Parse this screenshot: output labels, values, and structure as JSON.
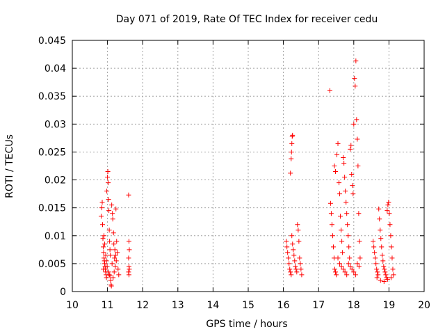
{
  "chart_data": {
    "type": "scatter",
    "title": "Day 071 of 2019, Rate Of TEC Index for receiver cedu",
    "xlabel": "GPS time / hours",
    "ylabel": "ROTI / TECUs",
    "xlim": [
      10,
      20
    ],
    "ylim": [
      0,
      0.045
    ],
    "x_ticks": [
      "10",
      "11",
      "12",
      "13",
      "14",
      "15",
      "16",
      "17",
      "18",
      "19",
      "20"
    ],
    "y_ticks": [
      "0",
      "0.005",
      "0.01",
      "0.015",
      "0.02",
      "0.025",
      "0.03",
      "0.035",
      "0.04",
      "0.045"
    ],
    "grid": true,
    "marker": "+",
    "marker_color": "#ff0000",
    "series": [
      {
        "name": "ROTI",
        "points": [
          [
            10.82,
            0.0135
          ],
          [
            10.84,
            0.015
          ],
          [
            10.85,
            0.016
          ],
          [
            10.86,
            0.012
          ],
          [
            10.87,
            0.0095
          ],
          [
            10.88,
            0.008
          ],
          [
            10.89,
            0.007
          ],
          [
            10.9,
            0.006
          ],
          [
            10.91,
            0.0055
          ],
          [
            10.92,
            0.005
          ],
          [
            10.93,
            0.0045
          ],
          [
            10.94,
            0.004
          ],
          [
            10.95,
            0.0035
          ],
          [
            10.96,
            0.003
          ],
          [
            10.97,
            0.0025
          ],
          [
            10.98,
            0.018
          ],
          [
            11.0,
            0.0205
          ],
          [
            11.01,
            0.0215
          ],
          [
            11.02,
            0.0195
          ],
          [
            11.03,
            0.0165
          ],
          [
            11.04,
            0.0145
          ],
          [
            11.05,
            0.011
          ],
          [
            11.06,
            0.009
          ],
          [
            11.07,
            0.0075
          ],
          [
            11.08,
            0.0065
          ],
          [
            11.09,
            0.002
          ],
          [
            11.1,
            0.0012
          ],
          [
            11.11,
            0.001
          ],
          [
            11.12,
            0.0155
          ],
          [
            11.14,
            0.014
          ],
          [
            11.15,
            0.013
          ],
          [
            11.17,
            0.0105
          ],
          [
            11.18,
            0.0085
          ],
          [
            11.2,
            0.006
          ],
          [
            11.22,
            0.0045
          ],
          [
            11.24,
            0.0148
          ],
          [
            11.26,
            0.009
          ],
          [
            11.28,
            0.007
          ],
          [
            11.3,
            0.004
          ],
          [
            11.32,
            0.003
          ],
          [
            10.88,
            0.004
          ],
          [
            10.9,
            0.01
          ],
          [
            10.92,
            0.0085
          ],
          [
            10.95,
            0.0065
          ],
          [
            10.97,
            0.0055
          ],
          [
            10.99,
            0.0045
          ],
          [
            11.03,
            0.0035
          ],
          [
            11.05,
            0.003
          ],
          [
            11.07,
            0.0028
          ],
          [
            11.13,
            0.005
          ],
          [
            11.16,
            0.0025
          ],
          [
            11.19,
            0.0035
          ],
          [
            11.21,
            0.0075
          ],
          [
            11.23,
            0.0065
          ],
          [
            11.25,
            0.0055
          ],
          [
            11.6,
            0.0173
          ],
          [
            11.61,
            0.009
          ],
          [
            11.62,
            0.0075
          ],
          [
            11.6,
            0.006
          ],
          [
            11.61,
            0.0045
          ],
          [
            11.62,
            0.004
          ],
          [
            11.6,
            0.0035
          ],
          [
            11.61,
            0.003
          ],
          [
            16.08,
            0.009
          ],
          [
            16.1,
            0.008
          ],
          [
            16.12,
            0.007
          ],
          [
            16.14,
            0.006
          ],
          [
            16.16,
            0.005
          ],
          [
            16.18,
            0.004
          ],
          [
            16.2,
            0.0035
          ],
          [
            16.22,
            0.003
          ],
          [
            16.24,
            0.01
          ],
          [
            16.26,
            0.0085
          ],
          [
            16.28,
            0.0075
          ],
          [
            16.3,
            0.0065
          ],
          [
            16.32,
            0.0055
          ],
          [
            16.34,
            0.0045
          ],
          [
            16.36,
            0.004
          ],
          [
            16.38,
            0.0035
          ],
          [
            16.4,
            0.012
          ],
          [
            16.42,
            0.011
          ],
          [
            16.44,
            0.009
          ],
          [
            16.46,
            0.006
          ],
          [
            16.48,
            0.005
          ],
          [
            16.5,
            0.004
          ],
          [
            16.52,
            0.003
          ],
          [
            16.2,
            0.0212
          ],
          [
            16.22,
            0.0238
          ],
          [
            16.23,
            0.025
          ],
          [
            16.24,
            0.0265
          ],
          [
            16.25,
            0.0278
          ],
          [
            16.26,
            0.028
          ],
          [
            17.32,
            0.036
          ],
          [
            17.34,
            0.0158
          ],
          [
            17.36,
            0.014
          ],
          [
            17.38,
            0.012
          ],
          [
            17.4,
            0.01
          ],
          [
            17.42,
            0.008
          ],
          [
            17.44,
            0.006
          ],
          [
            17.46,
            0.004
          ],
          [
            17.48,
            0.0035
          ],
          [
            17.5,
            0.003
          ],
          [
            17.45,
            0.0225
          ],
          [
            17.48,
            0.0215
          ],
          [
            17.52,
            0.0245
          ],
          [
            17.55,
            0.0265
          ],
          [
            17.58,
            0.0195
          ],
          [
            17.6,
            0.0175
          ],
          [
            17.62,
            0.0135
          ],
          [
            17.64,
            0.011
          ],
          [
            17.66,
            0.009
          ],
          [
            17.68,
            0.007
          ],
          [
            17.7,
            0.024
          ],
          [
            17.72,
            0.023
          ],
          [
            17.74,
            0.0205
          ],
          [
            17.76,
            0.018
          ],
          [
            17.78,
            0.016
          ],
          [
            17.8,
            0.014
          ],
          [
            17.82,
            0.012
          ],
          [
            17.84,
            0.01
          ],
          [
            17.86,
            0.008
          ],
          [
            17.88,
            0.006
          ],
          [
            17.9,
            0.0255
          ],
          [
            17.92,
            0.0262
          ],
          [
            17.94,
            0.021
          ],
          [
            17.96,
            0.019
          ],
          [
            17.98,
            0.0175
          ],
          [
            18.0,
            0.03
          ],
          [
            18.02,
            0.0382
          ],
          [
            18.04,
            0.0368
          ],
          [
            18.06,
            0.0413
          ],
          [
            18.08,
            0.0308
          ],
          [
            18.1,
            0.0273
          ],
          [
            18.12,
            0.0225
          ],
          [
            18.14,
            0.014
          ],
          [
            18.16,
            0.009
          ],
          [
            18.18,
            0.006
          ],
          [
            17.55,
            0.006
          ],
          [
            17.6,
            0.005
          ],
          [
            17.65,
            0.0045
          ],
          [
            17.7,
            0.004
          ],
          [
            17.75,
            0.0035
          ],
          [
            17.8,
            0.003
          ],
          [
            17.85,
            0.005
          ],
          [
            17.9,
            0.0045
          ],
          [
            17.95,
            0.004
          ],
          [
            18.0,
            0.0035
          ],
          [
            18.05,
            0.003
          ],
          [
            18.1,
            0.005
          ],
          [
            18.15,
            0.0045
          ],
          [
            18.55,
            0.009
          ],
          [
            18.57,
            0.008
          ],
          [
            18.59,
            0.007
          ],
          [
            18.61,
            0.006
          ],
          [
            18.63,
            0.005
          ],
          [
            18.65,
            0.004
          ],
          [
            18.67,
            0.0035
          ],
          [
            18.69,
            0.003
          ],
          [
            18.71,
            0.0148
          ],
          [
            18.73,
            0.013
          ],
          [
            18.75,
            0.011
          ],
          [
            18.77,
            0.0095
          ],
          [
            18.79,
            0.008
          ],
          [
            18.81,
            0.0065
          ],
          [
            18.83,
            0.0055
          ],
          [
            18.85,
            0.0045
          ],
          [
            18.87,
            0.004
          ],
          [
            18.89,
            0.0035
          ],
          [
            18.91,
            0.003
          ],
          [
            18.93,
            0.0025
          ],
          [
            18.95,
            0.0145
          ],
          [
            18.97,
            0.0155
          ],
          [
            18.99,
            0.016
          ],
          [
            19.01,
            0.014
          ],
          [
            19.03,
            0.012
          ],
          [
            19.05,
            0.01
          ],
          [
            19.07,
            0.008
          ],
          [
            19.09,
            0.006
          ],
          [
            19.11,
            0.004
          ],
          [
            19.13,
            0.003
          ],
          [
            18.66,
            0.0025
          ],
          [
            18.76,
            0.002
          ],
          [
            18.86,
            0.0018
          ],
          [
            18.96,
            0.0022
          ],
          [
            19.06,
            0.0025
          ]
        ]
      }
    ]
  }
}
